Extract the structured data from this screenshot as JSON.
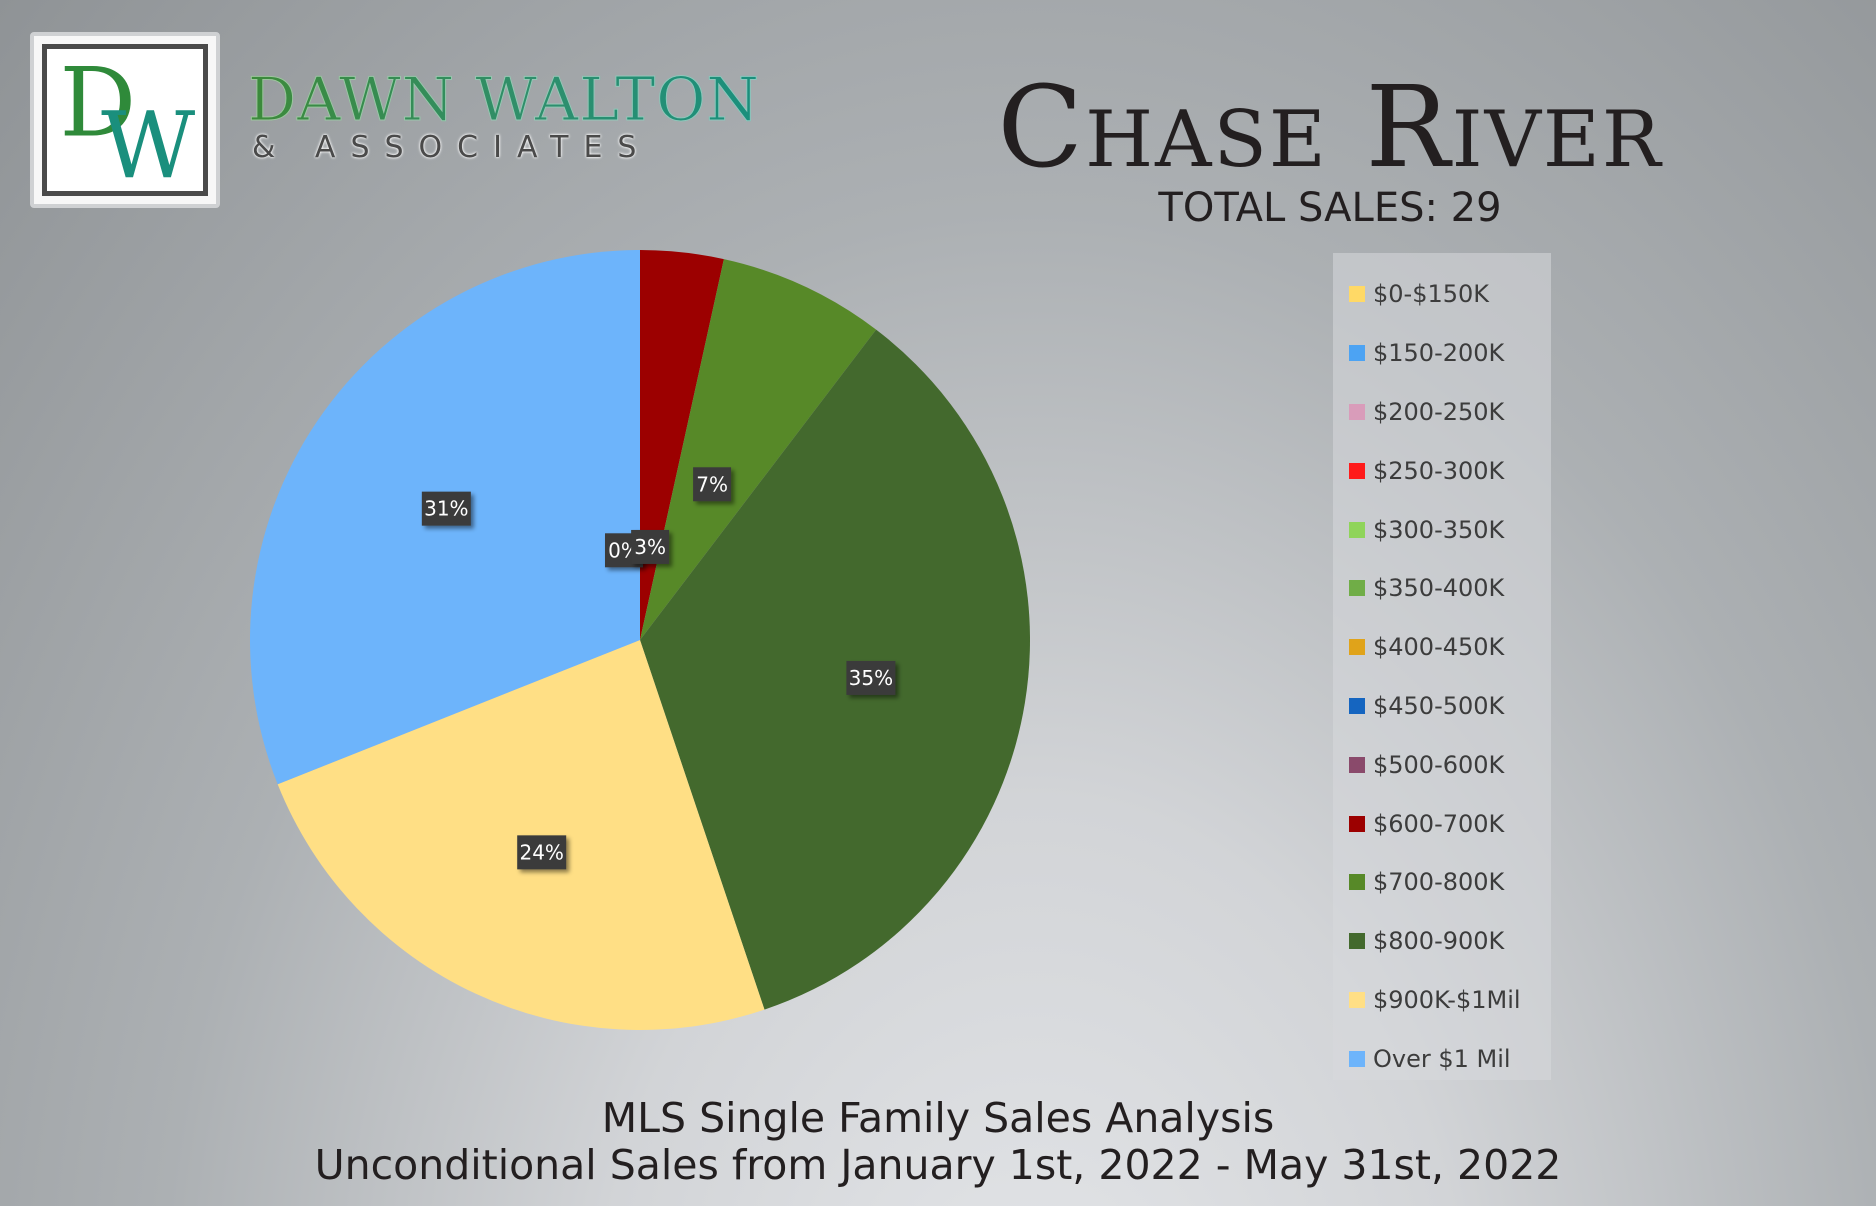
{
  "logo": {
    "monogram": "DW",
    "name": "DAWN WALTON",
    "subtitle": "& ASSOCIATES"
  },
  "header": {
    "title": "Chase River",
    "total_sales": "TOTAL SALES: 29"
  },
  "footer": {
    "line1": "MLS Single Family Sales Analysis",
    "line2": "Unconditional Sales from January 1st, 2022 - May 31st, 2022"
  },
  "chart_data": {
    "type": "pie",
    "start_angle_deg": 0,
    "direction": "clockwise",
    "slices": [
      {
        "name": "$0-$150K",
        "value": 0,
        "color": "#ffd966",
        "label": "",
        "show": false
      },
      {
        "name": "$150-200K",
        "value": 0,
        "color": "#4ca3f3",
        "label": "",
        "show": false
      },
      {
        "name": "$200-250K",
        "value": 0,
        "color": "#d99cba",
        "label": "",
        "show": false
      },
      {
        "name": "$250-300K",
        "value": 0,
        "color": "#ff1a1a",
        "label": "",
        "show": false
      },
      {
        "name": "$300-350K",
        "value": 0,
        "color": "#8fd45a",
        "label": "",
        "show": false
      },
      {
        "name": "$350-400K",
        "value": 0,
        "color": "#70ad47",
        "label": "",
        "show": false
      },
      {
        "name": "$400-450K",
        "value": 0,
        "color": "#e0a31a",
        "label": "",
        "show": false
      },
      {
        "name": "$450-500K",
        "value": 0,
        "color": "#1565c0",
        "label": "",
        "show": false
      },
      {
        "name": "$500-600K",
        "value": 0,
        "color": "#8a4a6b",
        "label": "0%",
        "show": true
      },
      {
        "name": "$600-700K",
        "value": 3.45,
        "color": "#9c0000",
        "label": "3%",
        "show": true
      },
      {
        "name": "$700-800K",
        "value": 6.9,
        "color": "#578928",
        "label": "7%",
        "show": true
      },
      {
        "name": "$800-900K",
        "value": 34.48,
        "color": "#43692d",
        "label": "35%",
        "show": true
      },
      {
        "name": "$900K-$1Mil",
        "value": 24.14,
        "color": "#ffdf85",
        "label": "24%",
        "show": true
      },
      {
        "name": "Over $1 Mil",
        "value": 31.03,
        "color": "#6db4fb",
        "label": "31%",
        "show": true
      }
    ],
    "legend": [
      {
        "label": "$0-$150K",
        "color": "#ffd966"
      },
      {
        "label": "$150-200K",
        "color": "#4ca3f3"
      },
      {
        "label": "$200-250K",
        "color": "#d99cba"
      },
      {
        "label": "$250-300K",
        "color": "#ff1a1a"
      },
      {
        "label": "$300-350K",
        "color": "#8fd45a"
      },
      {
        "label": "$350-400K",
        "color": "#70ad47"
      },
      {
        "label": "$400-450K",
        "color": "#e0a31a"
      },
      {
        "label": "$450-500K",
        "color": "#1565c0"
      },
      {
        "label": "$500-600K",
        "color": "#8a4a6b"
      },
      {
        "label": "$600-700K",
        "color": "#9c0000"
      },
      {
        "label": "$700-800K",
        "color": "#578928"
      },
      {
        "label": "$800-900K",
        "color": "#43692d"
      },
      {
        "label": "$900K-$1Mil",
        "color": "#ffdf85"
      },
      {
        "label": "Over $1 Mil",
        "color": "#6db4fb"
      }
    ],
    "legend_position": "right"
  }
}
